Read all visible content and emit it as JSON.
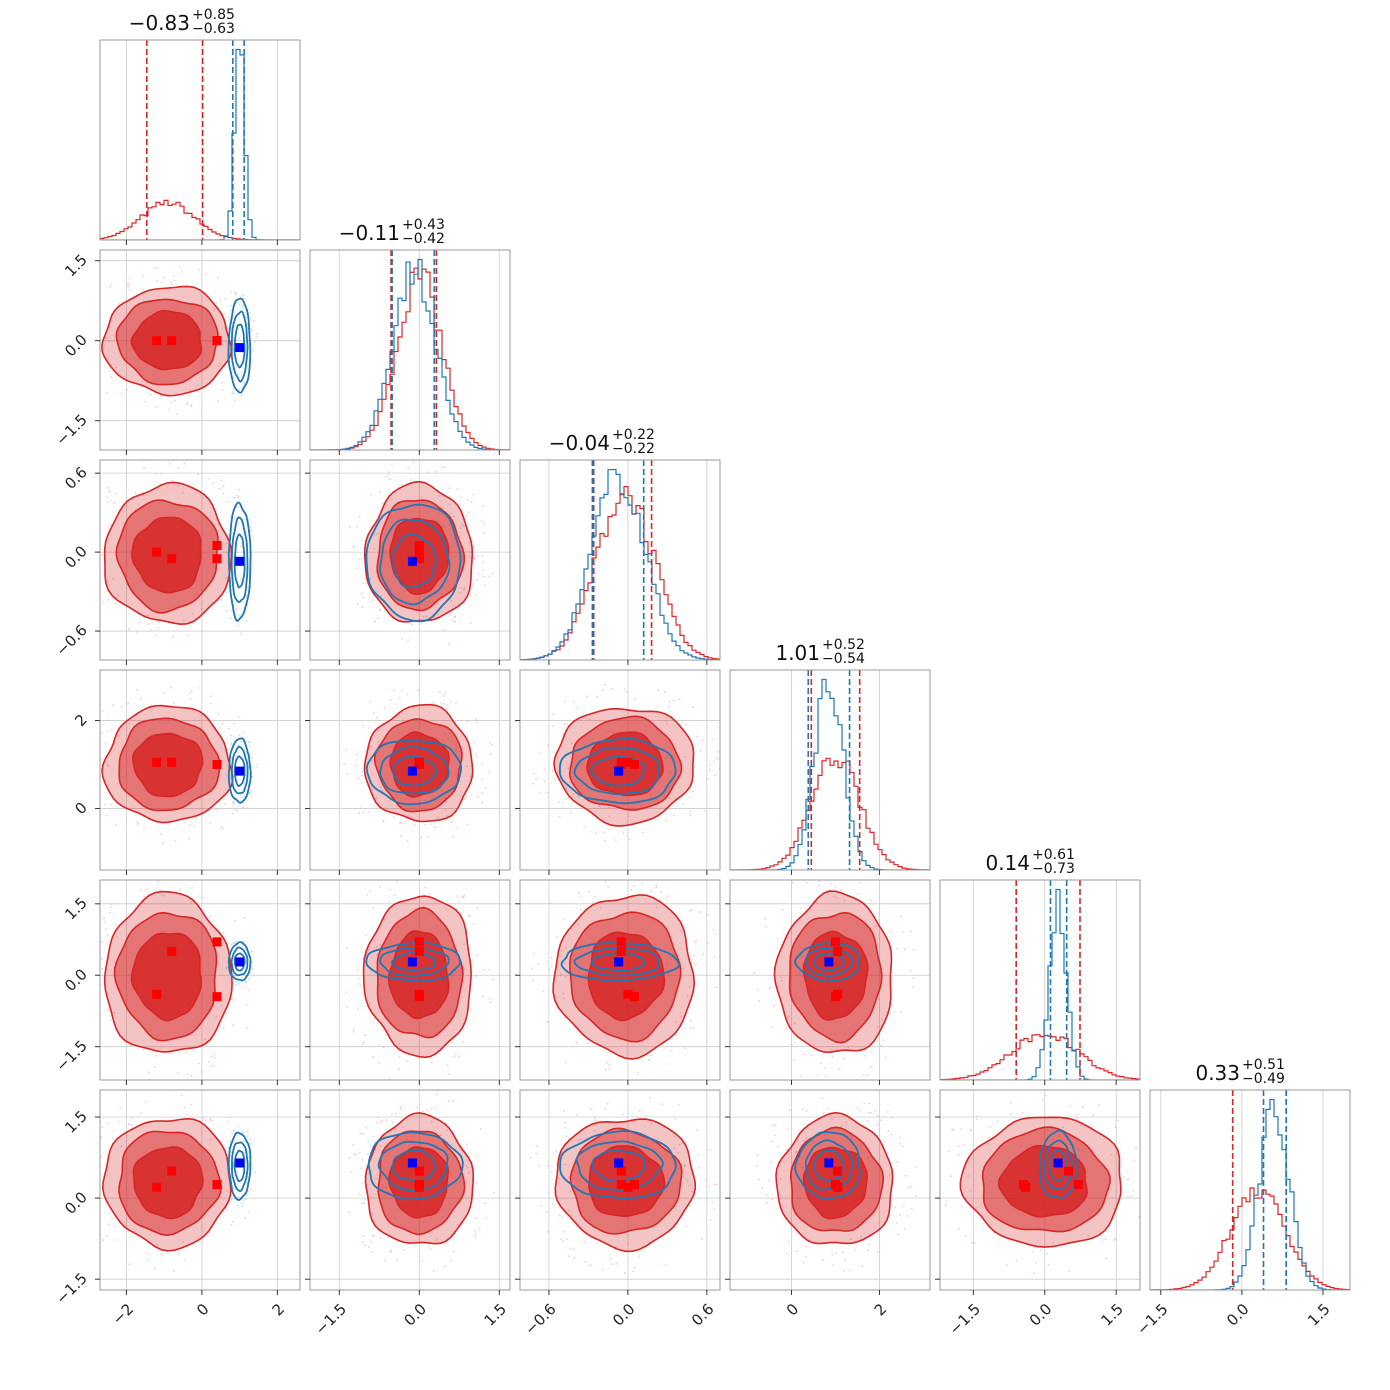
{
  "chart_data": {
    "type": "corner",
    "n_params": 6,
    "series": [
      {
        "name": "",
        "color": "#d62728",
        "fill": "#d62728",
        "marker": "#ff0000"
      },
      {
        "name": "",
        "color": "#1f77b4",
        "marker": "#0000ff"
      }
    ],
    "titles": [
      {
        "value": "−0.83",
        "plus": "+0.85",
        "minus": "−0.63"
      },
      {
        "value": "−0.11",
        "plus": "+0.43",
        "minus": "−0.42"
      },
      {
        "value": "−0.04",
        "plus": "+0.22",
        "minus": "−0.22"
      },
      {
        "value": "1.01",
        "plus": "+0.52",
        "minus": "−0.54"
      },
      {
        "value": "0.14",
        "plus": "+0.61",
        "minus": "−0.73"
      },
      {
        "value": "0.33",
        "plus": "+0.51",
        "minus": "−0.49"
      }
    ],
    "ranges": [
      [
        -2.7,
        2.6
      ],
      [
        -2.05,
        1.7
      ],
      [
        -0.82,
        0.7
      ],
      [
        -1.4,
        3.15
      ],
      [
        -2.2,
        2.0
      ],
      [
        -1.7,
        2.0
      ]
    ],
    "ticks": [
      [
        {
          "v": -2,
          "label": "−2"
        },
        {
          "v": 0,
          "label": "0"
        },
        {
          "v": 2,
          "label": "2"
        }
      ],
      [
        {
          "v": -1.5,
          "label": "−1.5"
        },
        {
          "v": 0,
          "label": "0.0"
        },
        {
          "v": 1.5,
          "label": "1.5"
        }
      ],
      [
        {
          "v": -0.6,
          "label": "−0.6"
        },
        {
          "v": 0,
          "label": "0.0"
        },
        {
          "v": 0.6,
          "label": "0.6"
        }
      ],
      [
        {
          "v": 0,
          "label": "0"
        },
        {
          "v": 2,
          "label": "2"
        }
      ],
      [
        {
          "v": -1.5,
          "label": "−1.5"
        },
        {
          "v": 0,
          "label": "0.0"
        },
        {
          "v": 1.5,
          "label": "1.5"
        }
      ],
      [
        {
          "v": -1.5,
          "label": "−1.5"
        },
        {
          "v": 0,
          "label": "0.0"
        },
        {
          "v": 1.5,
          "label": "1.5"
        }
      ]
    ],
    "grid": true,
    "red_distribution": {
      "mean": [
        -0.9,
        0.0,
        -0.02,
        1.0,
        0.0,
        0.3
      ],
      "sd": [
        0.7,
        0.42,
        0.22,
        0.55,
        0.7,
        0.5
      ]
    },
    "blue_distribution": {
      "mean": [
        1.0,
        -0.1,
        -0.07,
        0.85,
        0.28,
        0.6
      ],
      "sd": [
        0.13,
        0.4,
        0.2,
        0.33,
        0.18,
        0.28
      ]
    },
    "red_quantile_lines": [
      [
        -1.46,
        0.02
      ],
      [
        -0.53,
        0.32
      ],
      [
        -0.26,
        0.18
      ],
      [
        0.45,
        1.55
      ],
      [
        -0.6,
        0.74
      ],
      [
        -0.17,
        0.82
      ]
    ],
    "blue_quantile_lines": [
      [
        0.82,
        1.12
      ],
      [
        -0.51,
        0.28
      ],
      [
        -0.27,
        0.12
      ],
      [
        0.38,
        1.32
      ],
      [
        0.12,
        0.46
      ],
      [
        0.4,
        0.82
      ]
    ],
    "red_markers": [
      [
        -1.2,
        0.0,
        0.0,
        1.05,
        -0.4,
        0.2
      ],
      [
        -0.8,
        0.0,
        -0.05,
        1.05,
        0.5,
        0.5
      ],
      [
        0.4,
        0.0,
        -0.05,
        1.0,
        0.7,
        0.25
      ],
      [
        0.4,
        0.0,
        0.05,
        1.0,
        -0.45,
        0.25
      ]
    ],
    "blue_marker": [
      1.0,
      -0.13,
      -0.07,
      0.85,
      0.28,
      0.65
    ]
  }
}
